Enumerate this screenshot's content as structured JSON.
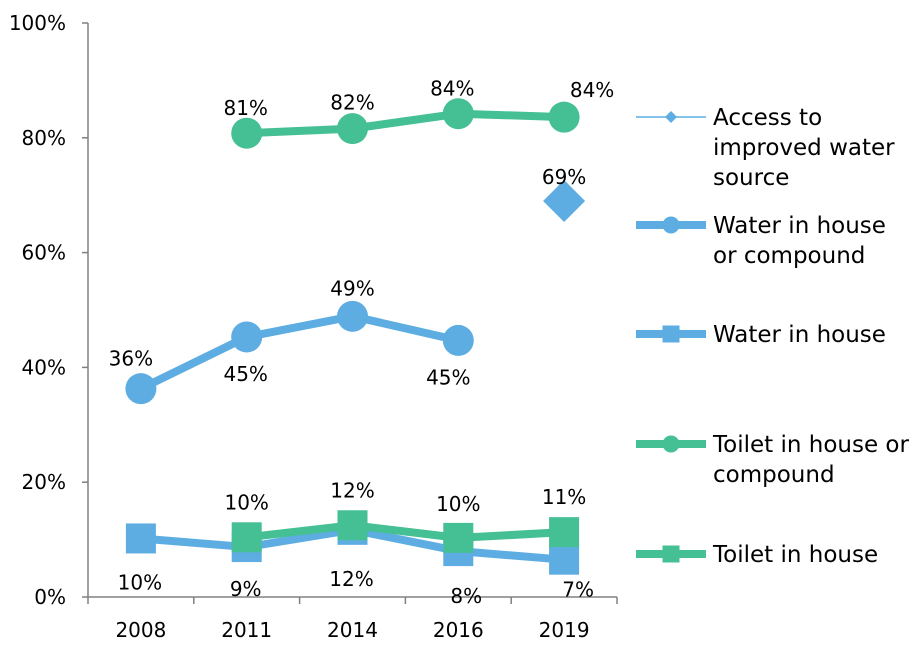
{
  "chart_data": {
    "type": "line",
    "categories": [
      "2008",
      "2011",
      "2014",
      "2016",
      "2019"
    ],
    "ylim": [
      0,
      100
    ],
    "yticks": [
      0,
      20,
      40,
      60,
      80,
      100
    ],
    "ytick_labels": [
      "0%",
      "20%",
      "40%",
      "60%",
      "80%",
      "100%"
    ],
    "grid": false,
    "legend_position": "right",
    "series": [
      {
        "name_lines": [
          "Access to",
          "improved water",
          "source"
        ],
        "values": [
          null,
          null,
          null,
          null,
          69
        ],
        "labels": [
          null,
          null,
          null,
          null,
          "69%"
        ],
        "color": "#5DADE2",
        "marker": "diamond",
        "line": "thin"
      },
      {
        "name_lines": [
          "Water in house",
          "or compound"
        ],
        "values": [
          36.3,
          45.3,
          48.9,
          44.7,
          null
        ],
        "labels": [
          "36%",
          "45%",
          "49%",
          "45%",
          null
        ],
        "color": "#5DADE2",
        "marker": "circle",
        "line": "thick"
      },
      {
        "name_lines": [
          "Water in house"
        ],
        "values": [
          10.2,
          8.7,
          11.7,
          8.0,
          6.5
        ],
        "labels": [
          "10%",
          "9%",
          "12%",
          "8%",
          "7%"
        ],
        "color": "#5DADE2",
        "marker": "square",
        "line": "thick"
      },
      {
        "name_lines": [
          "Toilet in house or",
          "compound"
        ],
        "values": [
          null,
          80.8,
          81.6,
          84.2,
          83.6
        ],
        "labels": [
          null,
          "81%",
          "82%",
          "84%",
          "84%"
        ],
        "color": "#45BF94",
        "marker": "circle",
        "line": "thick"
      },
      {
        "name_lines": [
          "Toilet in house"
        ],
        "values": [
          null,
          10.4,
          12.5,
          10.3,
          11.3
        ],
        "labels": [
          null,
          "10%",
          "12%",
          "10%",
          "11%"
        ],
        "color": "#45BF94",
        "marker": "square",
        "line": "thick"
      }
    ]
  }
}
